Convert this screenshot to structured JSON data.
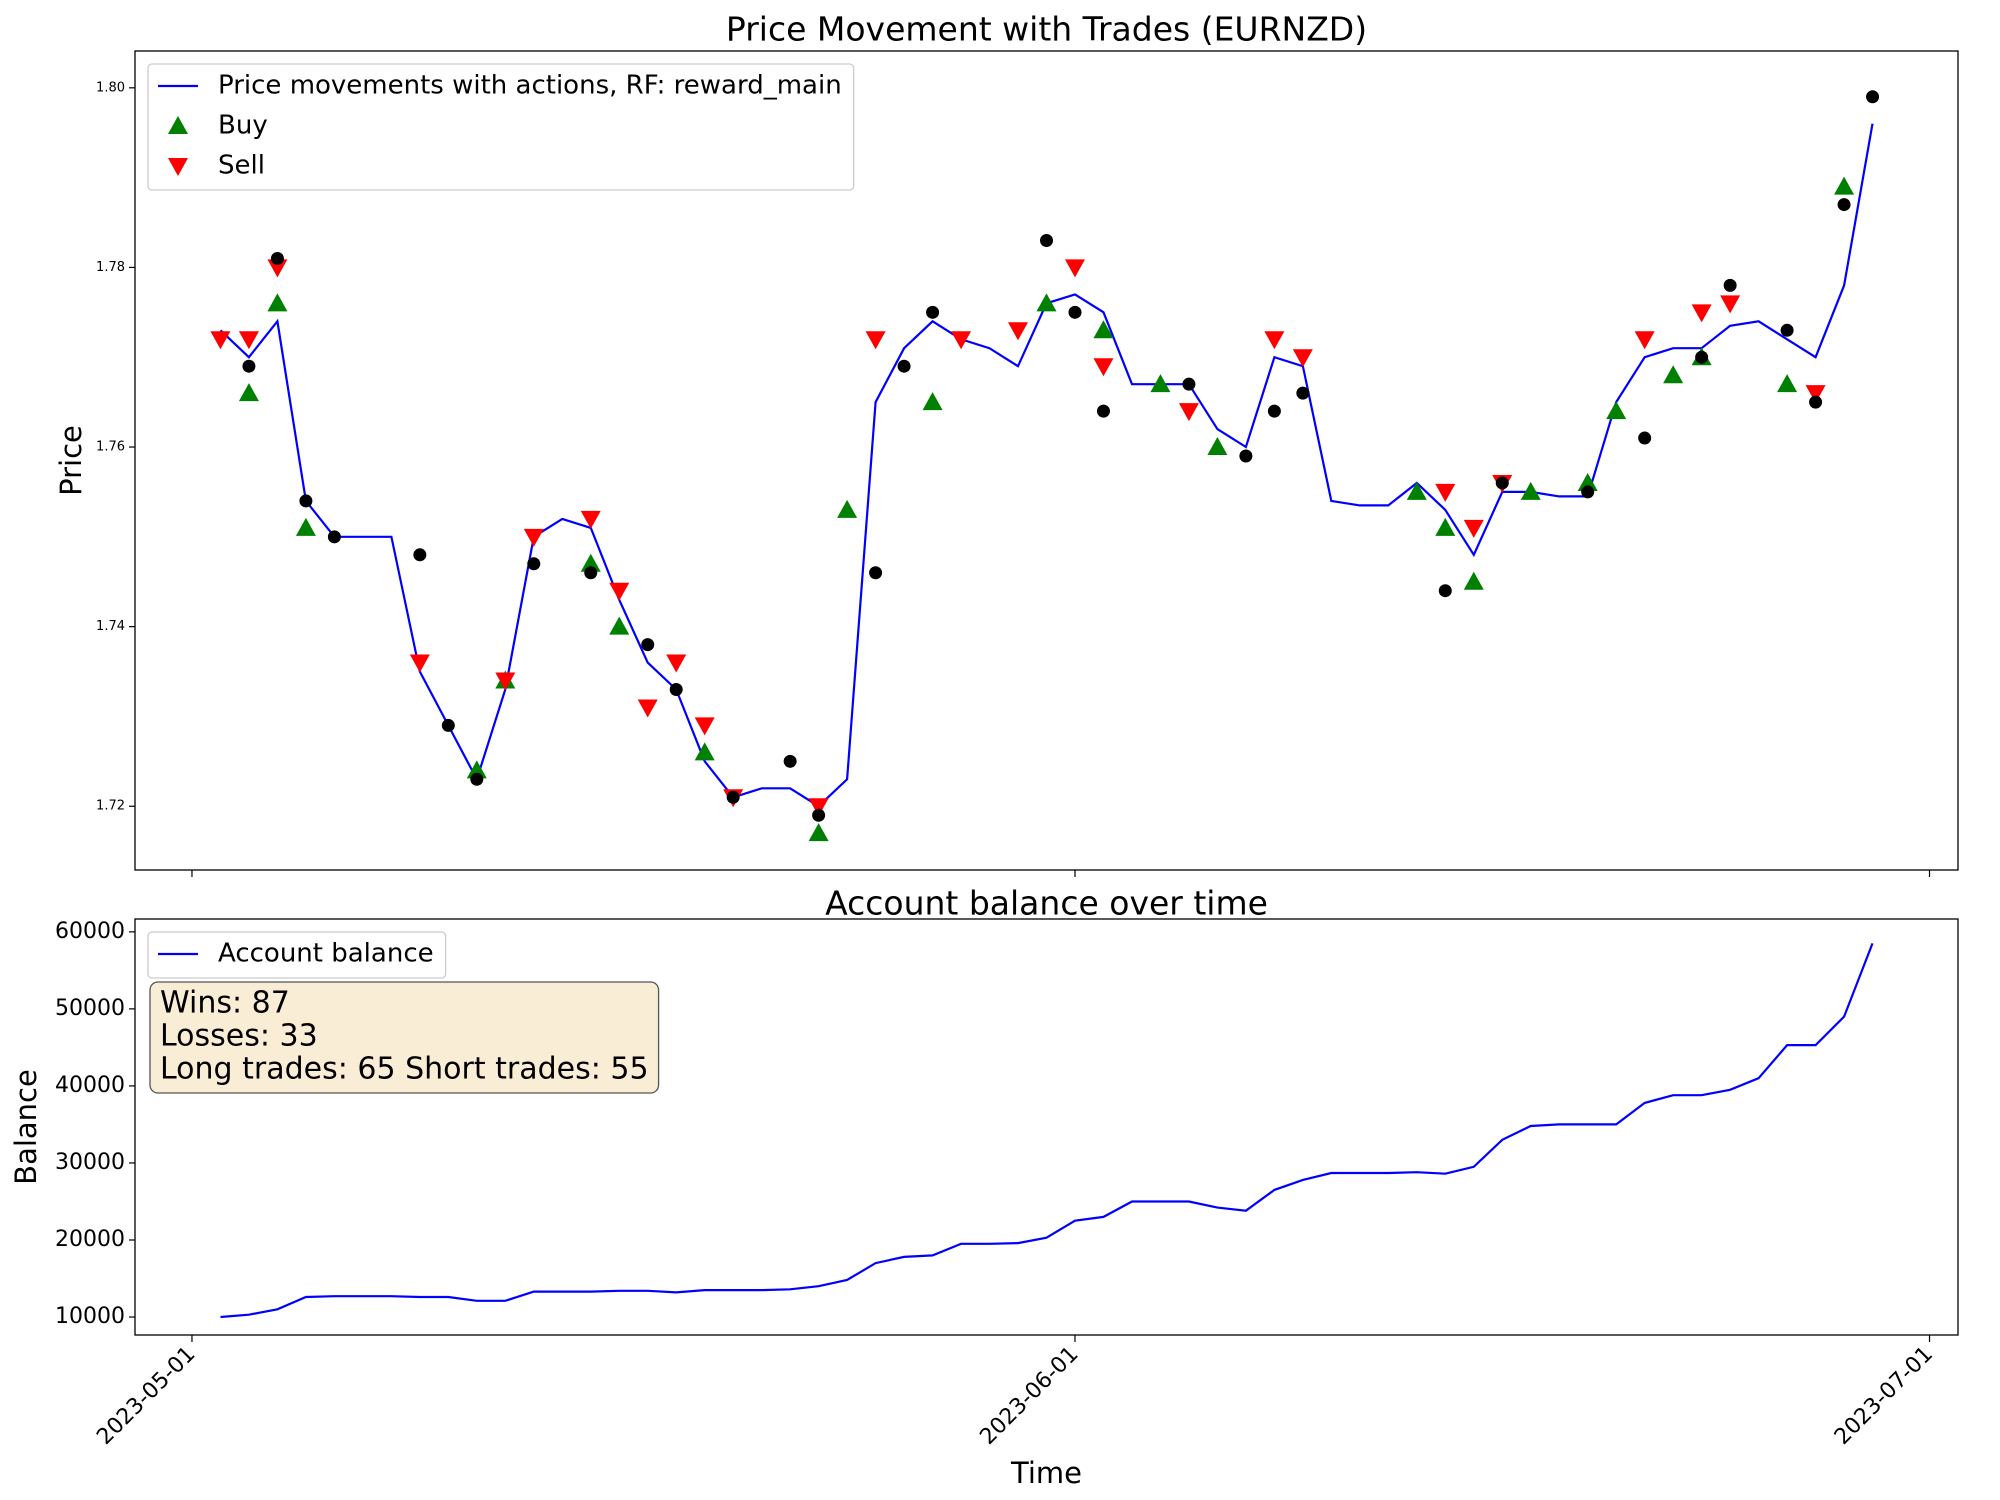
{
  "chart_data": [
    {
      "type": "line",
      "title": "Price Movement with Trades (EURNZD)",
      "ylabel": "Price",
      "legend": "upper left",
      "xlim": [
        "2023-04-29",
        "2023-07-02"
      ],
      "xticks": [
        "2023-05-01",
        "2023-06-01",
        "2023-07-01"
      ],
      "ylim": [
        1.7129,
        1.8041
      ],
      "yticks": [
        1.72,
        1.74,
        1.76,
        1.78,
        {
          "value": 1.8,
          "label": "1.80"
        }
      ],
      "x": [
        "2023-05-02",
        "2023-05-03",
        "2023-05-04",
        "2023-05-05",
        "2023-05-06",
        "2023-05-07",
        "2023-05-08",
        "2023-05-09",
        "2023-05-10",
        "2023-05-11",
        "2023-05-12",
        "2023-05-13",
        "2023-05-14",
        "2023-05-15",
        "2023-05-16",
        "2023-05-17",
        "2023-05-18",
        "2023-05-19",
        "2023-05-20",
        "2023-05-21",
        "2023-05-22",
        "2023-05-23",
        "2023-05-24",
        "2023-05-25",
        "2023-05-26",
        "2023-05-27",
        "2023-05-28",
        "2023-05-29",
        "2023-05-30",
        "2023-05-31",
        "2023-06-01",
        "2023-06-02",
        "2023-06-03",
        "2023-06-04",
        "2023-06-05",
        "2023-06-06",
        "2023-06-07",
        "2023-06-08",
        "2023-06-09",
        "2023-06-10",
        "2023-06-11",
        "2023-06-12",
        "2023-06-13",
        "2023-06-14",
        "2023-06-15",
        "2023-06-16",
        "2023-06-17",
        "2023-06-18",
        "2023-06-19",
        "2023-06-20",
        "2023-06-21",
        "2023-06-22",
        "2023-06-23",
        "2023-06-24",
        "2023-06-25",
        "2023-06-26",
        "2023-06-27",
        "2023-06-28",
        "2023-06-29"
      ],
      "series": [
        {
          "name": "Price movements with actions, RF: reward_main",
          "color": "#0000ff",
          "marker": "line",
          "values": [
            1.773,
            1.77,
            1.774,
            1.754,
            1.75,
            1.75,
            1.75,
            1.735,
            1.729,
            1.723,
            1.733,
            1.75,
            1.752,
            1.751,
            1.743,
            1.736,
            1.733,
            1.725,
            1.721,
            1.722,
            1.722,
            1.72,
            1.723,
            1.765,
            1.771,
            1.774,
            1.772,
            1.771,
            1.769,
            1.776,
            1.777,
            1.775,
            1.767,
            1.767,
            1.767,
            1.762,
            1.76,
            1.77,
            1.769,
            1.754,
            1.7535,
            1.7535,
            1.756,
            1.753,
            1.748,
            1.755,
            1.755,
            1.7545,
            1.7545,
            1.765,
            1.77,
            1.771,
            1.771,
            1.7735,
            1.774,
            1.772,
            1.77,
            1.778,
            1.796
          ]
        },
        {
          "name": "Buy",
          "color": "#008000",
          "marker": "triangle-up",
          "x": [
            "2023-05-03",
            "2023-05-04",
            "2023-05-05",
            "2023-05-11",
            "2023-05-12",
            "2023-05-15",
            "2023-05-16",
            "2023-05-19",
            "2023-05-23",
            "2023-05-24",
            "2023-05-27",
            "2023-05-31",
            "2023-06-02",
            "2023-06-04",
            "2023-06-06",
            "2023-06-13",
            "2023-06-14",
            "2023-06-15",
            "2023-06-17",
            "2023-06-19",
            "2023-06-20",
            "2023-06-22",
            "2023-06-23",
            "2023-06-26",
            "2023-06-28"
          ],
          "values": [
            1.766,
            1.776,
            1.751,
            1.724,
            1.734,
            1.747,
            1.74,
            1.726,
            1.717,
            1.753,
            1.765,
            1.776,
            1.773,
            1.767,
            1.76,
            1.755,
            1.751,
            1.745,
            1.755,
            1.756,
            1.764,
            1.768,
            1.77,
            1.767,
            1.789
          ]
        },
        {
          "name": "Sell",
          "color": "#ff0000",
          "marker": "triangle-down",
          "x": [
            "2023-05-02",
            "2023-05-03",
            "2023-05-04",
            "2023-05-09",
            "2023-05-12",
            "2023-05-13",
            "2023-05-15",
            "2023-05-16",
            "2023-05-17",
            "2023-05-18",
            "2023-05-19",
            "2023-05-20",
            "2023-05-23",
            "2023-05-25",
            "2023-05-28",
            "2023-05-30",
            "2023-06-01",
            "2023-06-02",
            "2023-06-05",
            "2023-06-08",
            "2023-06-09",
            "2023-06-14",
            "2023-06-15",
            "2023-06-16",
            "2023-06-21",
            "2023-06-23",
            "2023-06-24",
            "2023-06-27"
          ],
          "values": [
            1.772,
            1.772,
            1.78,
            1.736,
            1.734,
            1.75,
            1.752,
            1.744,
            1.731,
            1.736,
            1.729,
            1.721,
            1.72,
            1.772,
            1.772,
            1.773,
            1.78,
            1.769,
            1.764,
            1.772,
            1.77,
            1.755,
            1.751,
            1.756,
            1.772,
            1.775,
            1.776,
            1.766
          ]
        },
        {
          "color": "#000000",
          "marker": "circle",
          "x": [
            "2023-05-03",
            "2023-05-04",
            "2023-05-05",
            "2023-05-06",
            "2023-05-09",
            "2023-05-10",
            "2023-05-11",
            "2023-05-13",
            "2023-05-15",
            "2023-05-17",
            "2023-05-18",
            "2023-05-20",
            "2023-05-22",
            "2023-05-23",
            "2023-05-25",
            "2023-05-26",
            "2023-05-27",
            "2023-05-31",
            "2023-06-01",
            "2023-06-02",
            "2023-06-05",
            "2023-06-07",
            "2023-06-08",
            "2023-06-09",
            "2023-06-14",
            "2023-06-16",
            "2023-06-19",
            "2023-06-21",
            "2023-06-23",
            "2023-06-24",
            "2023-06-26",
            "2023-06-27",
            "2023-06-28",
            "2023-06-29"
          ],
          "values": [
            1.769,
            1.781,
            1.754,
            1.75,
            1.748,
            1.729,
            1.723,
            1.747,
            1.746,
            1.738,
            1.733,
            1.721,
            1.725,
            1.719,
            1.746,
            1.769,
            1.775,
            1.783,
            1.775,
            1.764,
            1.767,
            1.759,
            1.764,
            1.766,
            1.744,
            1.756,
            1.755,
            1.761,
            1.77,
            1.778,
            1.773,
            1.765,
            1.787,
            1.799
          ]
        }
      ]
    },
    {
      "type": "line",
      "title": "Account balance over time",
      "xlabel": "Time",
      "ylabel": "Balance",
      "legend": "upper left",
      "xlim": [
        "2023-04-29",
        "2023-07-02"
      ],
      "xticks": [
        "2023-05-01",
        "2023-06-01",
        "2023-07-01"
      ],
      "ylim": [
        7667,
        61667
      ],
      "yticks": [
        10000,
        20000,
        30000,
        40000,
        50000,
        60000
      ],
      "annotations": [
        "Wins: 87",
        "Losses: 33",
        "Long trades: 65 Short trades: 55"
      ],
      "x": [
        "2023-05-02",
        "2023-05-03",
        "2023-05-04",
        "2023-05-05",
        "2023-05-06",
        "2023-05-07",
        "2023-05-08",
        "2023-05-09",
        "2023-05-10",
        "2023-05-11",
        "2023-05-12",
        "2023-05-13",
        "2023-05-14",
        "2023-05-15",
        "2023-05-16",
        "2023-05-17",
        "2023-05-18",
        "2023-05-19",
        "2023-05-20",
        "2023-05-21",
        "2023-05-22",
        "2023-05-23",
        "2023-05-24",
        "2023-05-25",
        "2023-05-26",
        "2023-05-27",
        "2023-05-28",
        "2023-05-29",
        "2023-05-30",
        "2023-05-31",
        "2023-06-01",
        "2023-06-02",
        "2023-06-03",
        "2023-06-04",
        "2023-06-05",
        "2023-06-06",
        "2023-06-07",
        "2023-06-08",
        "2023-06-09",
        "2023-06-10",
        "2023-06-11",
        "2023-06-12",
        "2023-06-13",
        "2023-06-14",
        "2023-06-15",
        "2023-06-16",
        "2023-06-17",
        "2023-06-18",
        "2023-06-19",
        "2023-06-20",
        "2023-06-21",
        "2023-06-22",
        "2023-06-23",
        "2023-06-24",
        "2023-06-25",
        "2023-06-26",
        "2023-06-27",
        "2023-06-28",
        "2023-06-29"
      ],
      "series": [
        {
          "name": "Account balance",
          "color": "#0000ff",
          "marker": "line",
          "values": [
            10000,
            10300,
            11000,
            12600,
            12700,
            12700,
            12700,
            12600,
            12600,
            12100,
            12100,
            13300,
            13300,
            13300,
            13400,
            13400,
            13200,
            13500,
            13500,
            13500,
            13600,
            14000,
            14800,
            17000,
            17800,
            18000,
            19500,
            19500,
            19600,
            20300,
            22500,
            23000,
            25000,
            25000,
            25000,
            24200,
            23800,
            26500,
            27800,
            28700,
            28700,
            28700,
            28800,
            28600,
            29500,
            33000,
            34800,
            35000,
            35000,
            35000,
            37800,
            38800,
            38800,
            39500,
            41000,
            45300,
            45300,
            49000,
            58500
          ]
        }
      ]
    }
  ]
}
